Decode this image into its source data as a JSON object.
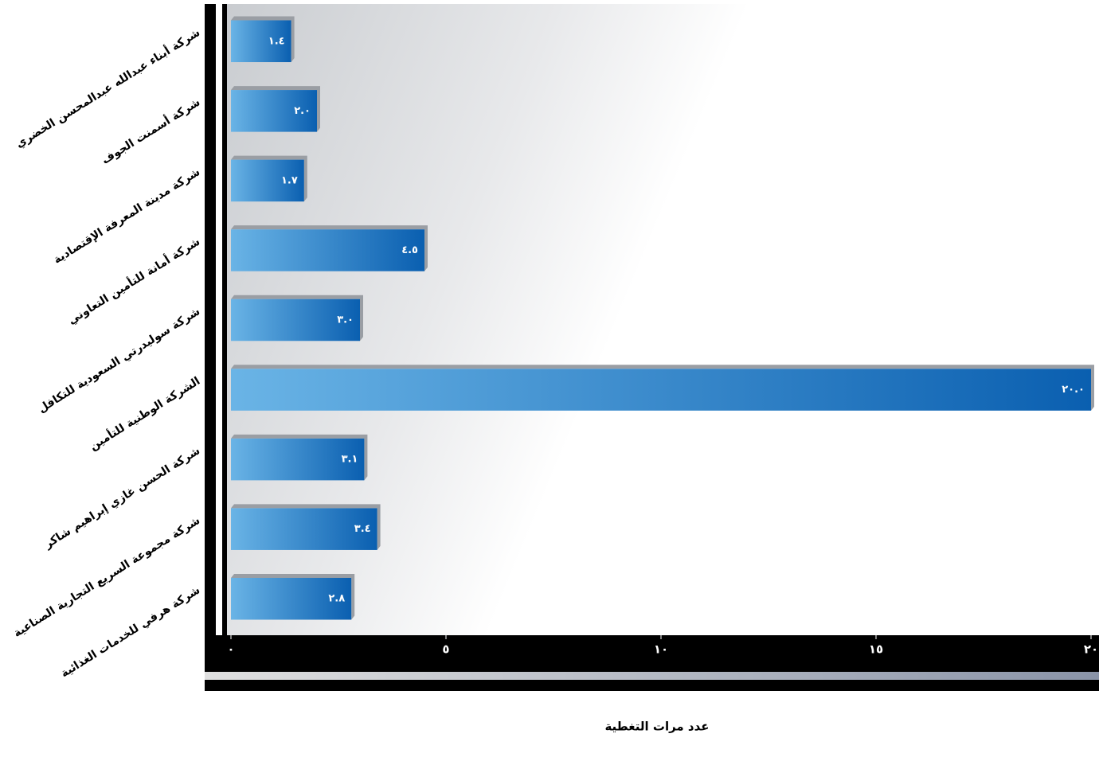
{
  "chart_data": {
    "type": "bar",
    "orientation": "horizontal",
    "x_axis_label": "عدد مرات التغطية",
    "categories": [
      "شركة أبناء عبدالله عبدالمحسن الخضري",
      "شركة أسمنت الجوف",
      "شركة مدينة المعرفة الإقتصادية",
      "شركة أمانة للتأمين التعاوني",
      "شركة سوليدرتي السعودية للتكافل",
      "الشركة الوطنية للتأمين",
      "شركة الحسن غازي إبراهيم شاكر",
      "شركة مجموعة السريع التجارية الصناعية",
      "شركة هرفي للخدمات الغذائية"
    ],
    "values": [
      1.4,
      2.0,
      1.7,
      4.5,
      3.0,
      20.0,
      3.1,
      3.4,
      2.8
    ],
    "value_labels": [
      "١.٤",
      "٢.٠",
      "١.٧",
      "٤.٥",
      "٣.٠",
      "٢٠.٠",
      "٣.١",
      "٣.٤",
      "٢.٨"
    ],
    "color": "#0a5fb0",
    "xlim": [
      0,
      20
    ],
    "xticks": [
      {
        "value": 0,
        "label": "٠"
      },
      {
        "value": 5,
        "label": "٥"
      },
      {
        "value": 10,
        "label": "١٠"
      },
      {
        "value": 15,
        "label": "١٥"
      },
      {
        "value": 20,
        "label": "٢٠"
      }
    ],
    "grid": false
  }
}
